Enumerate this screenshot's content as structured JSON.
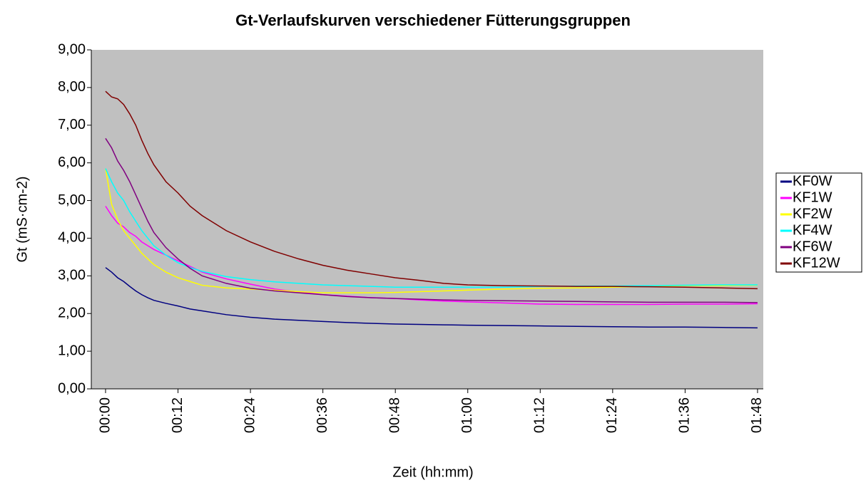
{
  "chart_data": {
    "type": "line",
    "title": "Gt-Verlaufskurven verschiedener Fütterungsgruppen",
    "xlabel": "Zeit (hh:mm)",
    "ylabel": "Gt (mS·cm-2)",
    "x": [
      0,
      1,
      2,
      3,
      4,
      5,
      6,
      7,
      8,
      10,
      12,
      14,
      16,
      20,
      24,
      28,
      32,
      36,
      40,
      44,
      48,
      52,
      56,
      60,
      66,
      72,
      78,
      84,
      90,
      96,
      102,
      108
    ],
    "series": [
      {
        "name": "KF0W",
        "color": "#000080",
        "values": [
          3.22,
          3.1,
          2.95,
          2.85,
          2.72,
          2.6,
          2.5,
          2.42,
          2.35,
          2.27,
          2.2,
          2.12,
          2.07,
          1.97,
          1.9,
          1.85,
          1.82,
          1.79,
          1.76,
          1.74,
          1.72,
          1.71,
          1.7,
          1.69,
          1.68,
          1.67,
          1.66,
          1.65,
          1.64,
          1.64,
          1.63,
          1.62
        ]
      },
      {
        "name": "KF1W",
        "color": "#ff00ff",
        "values": [
          4.85,
          4.6,
          4.4,
          4.3,
          4.15,
          4.05,
          3.9,
          3.8,
          3.7,
          3.55,
          3.4,
          3.25,
          3.1,
          2.92,
          2.78,
          2.65,
          2.57,
          2.5,
          2.46,
          2.42,
          2.4,
          2.36,
          2.33,
          2.31,
          2.28,
          2.25,
          2.24,
          2.24,
          2.24,
          2.25,
          2.25,
          2.26
        ]
      },
      {
        "name": "KF2W",
        "color": "#ffff00",
        "values": [
          5.85,
          4.9,
          4.5,
          4.2,
          4.0,
          3.8,
          3.6,
          3.45,
          3.3,
          3.1,
          2.95,
          2.85,
          2.75,
          2.68,
          2.65,
          2.62,
          2.58,
          2.55,
          2.55,
          2.55,
          2.56,
          2.58,
          2.6,
          2.62,
          2.65,
          2.67,
          2.68,
          2.7,
          2.72,
          2.74,
          2.74,
          2.75
        ]
      },
      {
        "name": "KF4W",
        "color": "#00ffff",
        "values": [
          5.85,
          5.5,
          5.2,
          5.0,
          4.7,
          4.45,
          4.2,
          4.0,
          3.8,
          3.55,
          3.35,
          3.22,
          3.12,
          2.98,
          2.9,
          2.84,
          2.8,
          2.76,
          2.74,
          2.72,
          2.7,
          2.7,
          2.7,
          2.7,
          2.7,
          2.72,
          2.73,
          2.73,
          2.74,
          2.75,
          2.76,
          2.76
        ]
      },
      {
        "name": "KF6W",
        "color": "#800080",
        "values": [
          6.65,
          6.4,
          6.05,
          5.8,
          5.5,
          5.15,
          4.8,
          4.45,
          4.15,
          3.75,
          3.45,
          3.2,
          3.0,
          2.8,
          2.67,
          2.6,
          2.55,
          2.5,
          2.45,
          2.42,
          2.4,
          2.38,
          2.36,
          2.35,
          2.34,
          2.33,
          2.32,
          2.31,
          2.3,
          2.3,
          2.3,
          2.29
        ]
      },
      {
        "name": "KF12W",
        "color": "#800000",
        "values": [
          7.9,
          7.75,
          7.7,
          7.55,
          7.3,
          7.0,
          6.6,
          6.25,
          5.95,
          5.5,
          5.2,
          4.85,
          4.6,
          4.2,
          3.9,
          3.65,
          3.45,
          3.28,
          3.15,
          3.05,
          2.95,
          2.88,
          2.8,
          2.76,
          2.74,
          2.73,
          2.72,
          2.72,
          2.71,
          2.7,
          2.68,
          2.66
        ]
      }
    ],
    "xlim": [
      -2.36,
      108.95
    ],
    "xticks": [
      {
        "value": 0,
        "label": "00:00"
      },
      {
        "value": 12,
        "label": "00:12"
      },
      {
        "value": 24,
        "label": "00:24"
      },
      {
        "value": 36,
        "label": "00:36"
      },
      {
        "value": 48,
        "label": "00:48"
      },
      {
        "value": 60,
        "label": "01:00"
      },
      {
        "value": 72,
        "label": "01:12"
      },
      {
        "value": 84,
        "label": "01:24"
      },
      {
        "value": 96,
        "label": "01:36"
      },
      {
        "value": 108,
        "label": "01:48"
      }
    ],
    "ylim": [
      0,
      9
    ],
    "yticks": [
      {
        "value": 0,
        "label": "0,00"
      },
      {
        "value": 1,
        "label": "1,00"
      },
      {
        "value": 2,
        "label": "2,00"
      },
      {
        "value": 3,
        "label": "3,00"
      },
      {
        "value": 4,
        "label": "4,00"
      },
      {
        "value": 5,
        "label": "5,00"
      },
      {
        "value": 6,
        "label": "6,00"
      },
      {
        "value": 7,
        "label": "7,00"
      },
      {
        "value": 8,
        "label": "8,00"
      },
      {
        "value": 9,
        "label": "9,00"
      }
    ],
    "plot_background": "#c0c0c0",
    "legend": "right"
  }
}
